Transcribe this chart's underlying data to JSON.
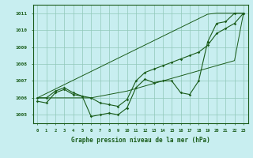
{
  "xlabel": "Graphe pression niveau de la mer (hPa)",
  "background_color": "#c8eef0",
  "grid_color": "#90c8b8",
  "line_color": "#1a5c1a",
  "x": [
    0,
    1,
    2,
    3,
    4,
    5,
    6,
    7,
    8,
    9,
    10,
    11,
    12,
    13,
    14,
    15,
    16,
    17,
    18,
    19,
    20,
    21,
    22,
    23
  ],
  "line1": [
    1005.8,
    1005.7,
    1006.3,
    1006.5,
    1006.2,
    1006.1,
    1004.9,
    1005.0,
    1005.1,
    1005.0,
    1005.4,
    1006.6,
    1007.1,
    1006.9,
    1007.0,
    1007.0,
    1006.3,
    1006.2,
    1007.0,
    1009.3,
    1010.4,
    1010.5,
    1011.0,
    1011.0
  ],
  "line2": [
    1006.0,
    1006.0,
    1006.4,
    1006.6,
    1006.3,
    1006.1,
    1006.0,
    1005.7,
    1005.6,
    1005.5,
    1005.9,
    1007.0,
    1007.5,
    1007.7,
    1007.9,
    1008.1,
    1008.3,
    1008.5,
    1008.7,
    1009.1,
    1009.8,
    1010.1,
    1010.4,
    1011.0
  ],
  "line3_top": [
    1006.0,
    1006.26,
    1006.52,
    1006.78,
    1007.04,
    1007.3,
    1007.56,
    1007.82,
    1008.08,
    1008.34,
    1008.6,
    1008.86,
    1009.12,
    1009.38,
    1009.64,
    1009.9,
    1010.16,
    1010.42,
    1010.68,
    1010.94,
    1011.0,
    1011.0,
    1011.0,
    1011.0
  ],
  "line3_bot": [
    1006.0,
    1006.0,
    1006.0,
    1006.0,
    1006.0,
    1006.0,
    1006.0,
    1006.1,
    1006.2,
    1006.3,
    1006.4,
    1006.55,
    1006.7,
    1006.85,
    1007.0,
    1007.15,
    1007.3,
    1007.45,
    1007.6,
    1007.75,
    1007.9,
    1008.05,
    1008.2,
    1011.0
  ],
  "ylim": [
    1004.5,
    1011.5
  ],
  "yticks": [
    1005,
    1006,
    1007,
    1008,
    1009,
    1010,
    1011
  ],
  "xticks": [
    0,
    1,
    2,
    3,
    4,
    5,
    6,
    7,
    8,
    9,
    10,
    11,
    12,
    13,
    14,
    15,
    16,
    17,
    18,
    19,
    20,
    21,
    22,
    23
  ]
}
